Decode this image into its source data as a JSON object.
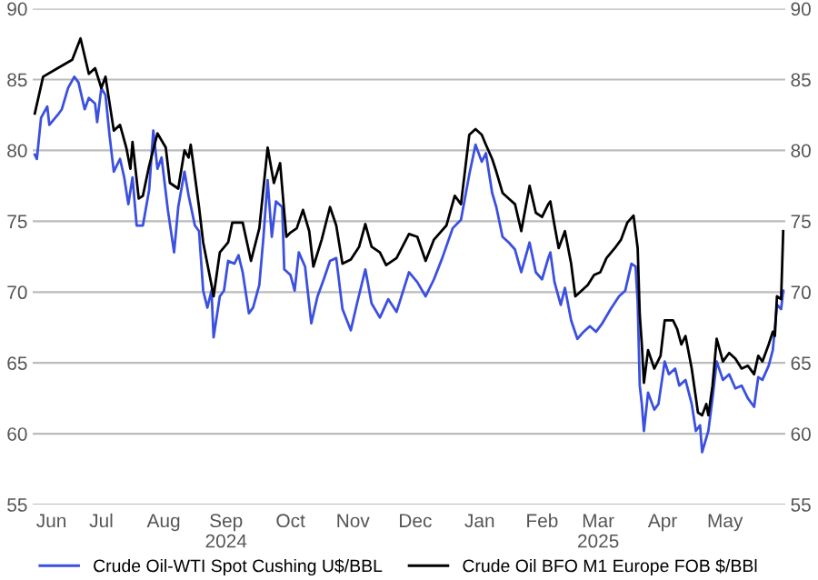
{
  "chart_data": {
    "type": "line",
    "xlim": [
      "2024-06-13",
      "2025-06-10"
    ],
    "ylim": [
      55,
      90
    ],
    "yticks": [
      55,
      60,
      65,
      70,
      75,
      80,
      85,
      90
    ],
    "y2lim": [
      55,
      90
    ],
    "y2ticks": [
      55,
      60,
      65,
      70,
      75,
      80,
      85,
      90
    ],
    "xticks": [
      {
        "value": "2024-06-22",
        "label": "Jun"
      },
      {
        "value": "2024-07-16",
        "label": "Jul"
      },
      {
        "value": "2024-08-15",
        "label": "Aug"
      },
      {
        "value": "2024-09-14",
        "label": "Sep\n2024"
      },
      {
        "value": "2024-10-15",
        "label": "Oct"
      },
      {
        "value": "2024-11-14",
        "label": "Nov"
      },
      {
        "value": "2024-12-14",
        "label": "Dec"
      },
      {
        "value": "2025-01-14",
        "label": "Jan"
      },
      {
        "value": "2025-02-13",
        "label": "Feb"
      },
      {
        "value": "2025-03-12",
        "label": "Mar\n2025"
      },
      {
        "value": "2025-04-12",
        "label": "Apr"
      },
      {
        "value": "2025-05-12",
        "label": "May"
      }
    ],
    "grid": "y",
    "legend": "bottom",
    "marker": "none",
    "line_style": "solid",
    "series": [
      {
        "name": "Crude Oil-WTI Spot Cushing U$/BBL",
        "color": "#3b4fe0",
        "x": [
          "2024-06-14",
          "2024-06-15",
          "2024-06-17",
          "2024-06-20",
          "2024-06-21",
          "2024-06-25",
          "2024-06-27",
          "2024-06-29",
          "2024-06-30",
          "2024-07-03",
          "2024-07-05",
          "2024-07-08",
          "2024-07-10",
          "2024-07-13",
          "2024-07-14",
          "2024-07-16",
          "2024-07-18",
          "2024-07-20",
          "2024-07-22",
          "2024-07-25",
          "2024-07-27",
          "2024-07-29",
          "2024-07-31",
          "2024-08-02",
          "2024-08-05",
          "2024-08-08",
          "2024-08-10",
          "2024-08-12",
          "2024-08-14",
          "2024-08-17",
          "2024-08-20",
          "2024-08-22",
          "2024-08-25",
          "2024-08-27",
          "2024-08-30",
          "2024-09-01",
          "2024-09-03",
          "2024-09-05",
          "2024-09-07",
          "2024-09-08",
          "2024-09-11",
          "2024-09-13",
          "2024-09-15",
          "2024-09-18",
          "2024-09-20",
          "2024-09-22",
          "2024-09-25",
          "2024-09-27",
          "2024-09-30",
          "2024-10-02",
          "2024-10-04",
          "2024-10-06",
          "2024-10-08",
          "2024-10-11",
          "2024-10-12",
          "2024-10-15",
          "2024-10-17",
          "2024-10-19",
          "2024-10-22",
          "2024-10-25",
          "2024-10-28",
          "2024-10-31",
          "2024-11-03",
          "2024-11-06",
          "2024-11-09",
          "2024-11-13",
          "2024-11-16",
          "2024-11-20",
          "2024-11-23",
          "2024-11-27",
          "2024-12-01",
          "2024-12-05",
          "2024-12-11",
          "2024-12-15",
          "2024-12-19",
          "2024-12-23",
          "2024-12-27",
          "2025-01-01",
          "2025-01-05",
          "2025-01-09",
          "2025-01-12",
          "2025-01-15",
          "2025-01-17",
          "2025-01-20",
          "2025-01-22",
          "2025-01-25",
          "2025-01-28",
          "2025-01-31",
          "2025-02-03",
          "2025-02-07",
          "2025-02-10",
          "2025-02-13",
          "2025-02-16",
          "2025-02-17",
          "2025-02-19",
          "2025-02-22",
          "2025-02-24",
          "2025-02-27",
          "2025-03-02",
          "2025-03-05",
          "2025-03-08",
          "2025-03-11",
          "2025-03-14",
          "2025-03-18",
          "2025-03-22",
          "2025-03-25",
          "2025-03-28",
          "2025-03-30",
          "2025-03-31",
          "2025-04-01",
          "2025-04-02",
          "2025-04-03",
          "2025-04-05",
          "2025-04-08",
          "2025-04-10",
          "2025-04-13",
          "2025-04-15",
          "2025-04-18",
          "2025-04-20",
          "2025-04-23",
          "2025-04-26",
          "2025-04-28",
          "2025-04-30",
          "2025-05-01",
          "2025-05-04",
          "2025-05-06",
          "2025-05-08",
          "2025-05-11",
          "2025-05-14",
          "2025-05-17",
          "2025-05-20",
          "2025-05-23",
          "2025-05-26",
          "2025-05-28",
          "2025-05-30",
          "2025-06-02",
          "2025-06-04",
          "2025-06-06",
          "2025-06-08",
          "2025-06-09"
        ],
        "values": [
          79.7,
          79.4,
          82.3,
          83.1,
          81.8,
          82.5,
          82.9,
          83.9,
          84.4,
          85.2,
          84.8,
          82.9,
          83.7,
          83.3,
          82.0,
          84.4,
          83.9,
          81.0,
          78.5,
          79.4,
          78.1,
          76.2,
          78.1,
          74.7,
          74.7,
          77.2,
          81.4,
          78.7,
          79.5,
          75.8,
          72.8,
          76.0,
          78.5,
          76.8,
          74.7,
          74.3,
          70.1,
          68.9,
          70.1,
          66.8,
          69.7,
          70.1,
          72.2,
          72.0,
          72.6,
          71.4,
          68.5,
          68.9,
          70.5,
          73.9,
          77.9,
          73.9,
          76.4,
          76.0,
          71.6,
          71.2,
          70.1,
          72.8,
          71.8,
          67.8,
          69.7,
          70.9,
          72.2,
          72.4,
          68.8,
          67.3,
          69.2,
          71.6,
          69.2,
          68.2,
          69.5,
          68.6,
          71.4,
          70.7,
          69.7,
          70.9,
          72.4,
          74.5,
          75.1,
          78.3,
          80.4,
          79.2,
          79.8,
          77.0,
          76.0,
          73.9,
          73.5,
          73.0,
          71.4,
          73.5,
          71.4,
          70.9,
          72.4,
          72.8,
          70.7,
          69.1,
          70.3,
          68.0,
          66.7,
          67.2,
          67.6,
          67.2,
          67.8,
          68.8,
          69.7,
          70.1,
          72.0,
          71.8,
          69.3,
          63.4,
          62.1,
          60.2,
          62.9,
          61.7,
          62.1,
          65.1,
          64.2,
          64.6,
          63.4,
          63.8,
          62.1,
          60.2,
          60.6,
          58.7,
          60.2,
          62.5,
          65.1,
          63.8,
          64.2,
          63.2,
          63.4,
          62.5,
          61.9,
          64.0,
          63.8,
          64.8,
          65.9,
          69.1,
          68.8,
          70.1
        ]
      },
      {
        "name": "Crude Oil BFO M1 Europe FOB $/BBl",
        "color": "#000000",
        "x": [
          "2024-06-14",
          "2024-06-18",
          "2024-06-25",
          "2024-07-02",
          "2024-07-06",
          "2024-07-10",
          "2024-07-13",
          "2024-07-16",
          "2024-07-18",
          "2024-07-22",
          "2024-07-25",
          "2024-07-28",
          "2024-07-30",
          "2024-07-31",
          "2024-08-03",
          "2024-08-05",
          "2024-08-08",
          "2024-08-12",
          "2024-08-16",
          "2024-08-18",
          "2024-08-22",
          "2024-08-25",
          "2024-08-27",
          "2024-08-28",
          "2024-09-01",
          "2024-09-03",
          "2024-09-07",
          "2024-09-08",
          "2024-09-11",
          "2024-09-15",
          "2024-09-17",
          "2024-09-22",
          "2024-09-26",
          "2024-09-30",
          "2024-10-04",
          "2024-10-07",
          "2024-10-10",
          "2024-10-13",
          "2024-10-15",
          "2024-10-18",
          "2024-10-21",
          "2024-10-24",
          "2024-10-26",
          "2024-10-30",
          "2024-11-03",
          "2024-11-06",
          "2024-11-09",
          "2024-11-13",
          "2024-11-17",
          "2024-11-20",
          "2024-11-23",
          "2024-11-27",
          "2024-11-30",
          "2024-12-05",
          "2024-12-11",
          "2024-12-15",
          "2024-12-19",
          "2024-12-23",
          "2024-12-29",
          "2025-01-02",
          "2025-01-05",
          "2025-01-09",
          "2025-01-12",
          "2025-01-15",
          "2025-01-17",
          "2025-01-20",
          "2025-01-22",
          "2025-01-25",
          "2025-01-28",
          "2025-01-31",
          "2025-02-03",
          "2025-02-07",
          "2025-02-10",
          "2025-02-13",
          "2025-02-16",
          "2025-02-17",
          "2025-02-19",
          "2025-02-21",
          "2025-02-24",
          "2025-02-27",
          "2025-03-01",
          "2025-03-04",
          "2025-03-07",
          "2025-03-10",
          "2025-03-13",
          "2025-03-16",
          "2025-03-20",
          "2025-03-23",
          "2025-03-26",
          "2025-03-29",
          "2025-03-31",
          "2025-04-01",
          "2025-04-02",
          "2025-04-03",
          "2025-04-05",
          "2025-04-08",
          "2025-04-11",
          "2025-04-13",
          "2025-04-17",
          "2025-04-19",
          "2025-04-21",
          "2025-04-23",
          "2025-04-26",
          "2025-04-29",
          "2025-05-01",
          "2025-05-03",
          "2025-05-04",
          "2025-05-06",
          "2025-05-08",
          "2025-05-11",
          "2025-05-14",
          "2025-05-17",
          "2025-05-20",
          "2025-05-23",
          "2025-05-26",
          "2025-05-28",
          "2025-05-30",
          "2025-06-02",
          "2025-06-04",
          "2025-06-05",
          "2025-06-06",
          "2025-06-08",
          "2025-06-09"
        ],
        "values": [
          82.6,
          85.2,
          85.8,
          86.4,
          87.9,
          85.4,
          85.8,
          84.4,
          85.2,
          81.4,
          81.8,
          80.2,
          78.7,
          80.6,
          76.6,
          76.8,
          78.9,
          81.2,
          80.2,
          77.7,
          77.3,
          80.0,
          79.5,
          80.4,
          76.0,
          73.5,
          70.5,
          69.7,
          72.8,
          73.5,
          74.9,
          74.9,
          72.2,
          74.5,
          80.2,
          77.7,
          79.1,
          73.9,
          74.2,
          74.5,
          75.8,
          74.3,
          71.8,
          73.7,
          76.0,
          74.7,
          72.0,
          72.3,
          73.2,
          74.8,
          73.2,
          72.8,
          71.9,
          72.4,
          74.1,
          73.9,
          72.2,
          73.7,
          74.7,
          76.8,
          76.2,
          81.1,
          81.5,
          81.1,
          80.4,
          79.4,
          78.5,
          77.0,
          76.6,
          76.2,
          74.3,
          77.5,
          75.6,
          75.3,
          76.2,
          76.4,
          74.7,
          73.1,
          74.3,
          72.0,
          69.7,
          70.1,
          70.5,
          71.2,
          71.4,
          72.4,
          73.1,
          73.7,
          74.9,
          75.4,
          73.1,
          68.4,
          66.3,
          63.6,
          65.9,
          64.6,
          65.5,
          68.0,
          68.0,
          67.4,
          66.3,
          66.9,
          64.6,
          61.5,
          61.3,
          62.1,
          61.3,
          63.4,
          66.7,
          65.1,
          65.7,
          65.3,
          64.6,
          64.8,
          64.2,
          65.5,
          65.1,
          66.3,
          67.2,
          66.9,
          69.7,
          69.5,
          74.3
        ]
      }
    ]
  }
}
